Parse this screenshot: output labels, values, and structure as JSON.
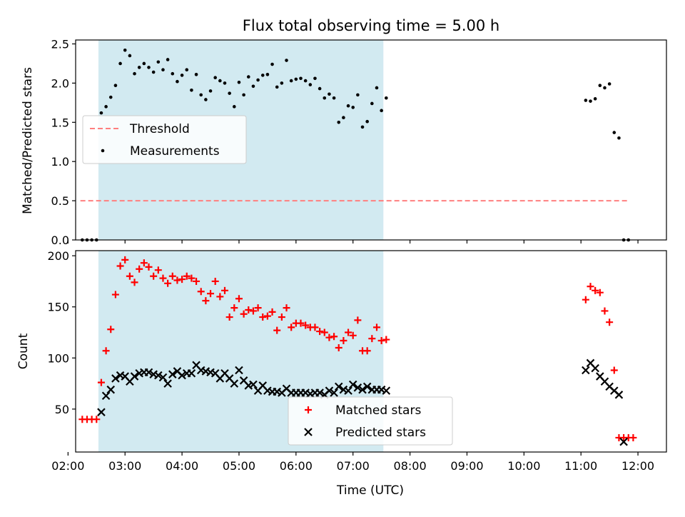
{
  "chart_data": [
    {
      "type": "scatter",
      "title": "Flux total observing time = 5.00 h",
      "xlabel": "",
      "ylabel": "Matched/Predicted stars",
      "xlim": [
        "02:08",
        "12:30"
      ],
      "ylim": [
        0,
        2.55
      ],
      "xticks": [
        "02:00",
        "03:00",
        "04:00",
        "05:00",
        "06:00",
        "07:00",
        "08:00",
        "09:00",
        "10:00",
        "11:00",
        "12:00"
      ],
      "yticks": [
        "0.0",
        "0.5",
        "1.0",
        "1.5",
        "2.0",
        "2.5"
      ],
      "shaded_interval": {
        "start": "02:32",
        "end": "07:32",
        "color": "#add8e6"
      },
      "grid": false,
      "legend_position": "center-left",
      "series": [
        {
          "name": "Threshold",
          "type": "line",
          "style": "dashed",
          "color": "#ff7f7f",
          "x": [
            "02:13",
            "11:51"
          ],
          "y": [
            0.5,
            0.5
          ]
        },
        {
          "name": "Measurements",
          "type": "scatter",
          "marker": "dot",
          "color": "#000000",
          "x": [
            "02:15",
            "02:20",
            "02:25",
            "02:30",
            "02:35",
            "02:40",
            "02:45",
            "02:50",
            "02:55",
            "03:00",
            "03:05",
            "03:10",
            "03:15",
            "03:20",
            "03:25",
            "03:30",
            "03:35",
            "03:40",
            "03:45",
            "03:50",
            "03:55",
            "04:00",
            "04:05",
            "04:10",
            "04:15",
            "04:20",
            "04:25",
            "04:30",
            "04:35",
            "04:40",
            "04:45",
            "04:50",
            "04:55",
            "05:00",
            "05:05",
            "05:10",
            "05:15",
            "05:20",
            "05:25",
            "05:30",
            "05:35",
            "05:40",
            "05:45",
            "05:50",
            "05:55",
            "06:00",
            "06:05",
            "06:10",
            "06:15",
            "06:20",
            "06:25",
            "06:30",
            "06:35",
            "06:40",
            "06:45",
            "06:50",
            "06:55",
            "07:00",
            "07:05",
            "07:10",
            "07:15",
            "07:20",
            "07:25",
            "07:30",
            "07:35",
            "11:05",
            "11:10",
            "11:15",
            "11:20",
            "11:25",
            "11:30",
            "11:35",
            "11:40",
            "11:45",
            "11:50"
          ],
          "y": [
            0.0,
            0.0,
            0.0,
            0.0,
            1.62,
            1.7,
            1.82,
            1.97,
            2.25,
            2.42,
            2.35,
            2.12,
            2.2,
            2.25,
            2.2,
            2.14,
            2.27,
            2.17,
            2.3,
            2.12,
            2.02,
            2.1,
            2.17,
            1.91,
            2.11,
            1.85,
            1.79,
            1.9,
            2.07,
            2.03,
            2.0,
            1.87,
            1.7,
            2.01,
            1.85,
            2.08,
            1.96,
            2.04,
            2.1,
            2.11,
            2.24,
            1.95,
            2.0,
            2.29,
            2.03,
            2.05,
            2.06,
            2.03,
            1.98,
            2.06,
            1.93,
            1.81,
            1.86,
            1.81,
            1.5,
            1.56,
            1.71,
            1.69,
            1.85,
            1.44,
            1.51,
            1.74,
            1.94,
            1.65,
            1.81,
            1.78,
            1.77,
            1.8,
            1.97,
            1.94,
            1.99,
            1.37,
            1.3,
            0.0,
            0.0
          ]
        }
      ]
    },
    {
      "type": "scatter",
      "title": "",
      "xlabel": "Time (UTC)",
      "ylabel": "Count",
      "xlim": [
        "02:08",
        "12:30"
      ],
      "ylim": [
        8,
        205
      ],
      "xticks": [
        "02:00",
        "03:00",
        "04:00",
        "05:00",
        "06:00",
        "07:00",
        "08:00",
        "09:00",
        "10:00",
        "11:00",
        "12:00"
      ],
      "yticks": [
        "50",
        "100",
        "150",
        "200"
      ],
      "shaded_interval": {
        "start": "02:32",
        "end": "07:32",
        "color": "#add8e6"
      },
      "grid": false,
      "legend_position": "lower-center",
      "series": [
        {
          "name": "Matched stars",
          "type": "scatter",
          "marker": "plus",
          "color": "#ff0000",
          "x": [
            "02:15",
            "02:20",
            "02:25",
            "02:30",
            "02:35",
            "02:40",
            "02:45",
            "02:50",
            "02:55",
            "03:00",
            "03:05",
            "03:10",
            "03:15",
            "03:20",
            "03:25",
            "03:30",
            "03:35",
            "03:40",
            "03:45",
            "03:50",
            "03:55",
            "04:00",
            "04:05",
            "04:10",
            "04:15",
            "04:20",
            "04:25",
            "04:30",
            "04:35",
            "04:40",
            "04:45",
            "04:50",
            "04:55",
            "05:00",
            "05:05",
            "05:10",
            "05:15",
            "05:20",
            "05:25",
            "05:30",
            "05:35",
            "05:40",
            "05:45",
            "05:50",
            "05:55",
            "06:00",
            "06:05",
            "06:10",
            "06:15",
            "06:20",
            "06:25",
            "06:30",
            "06:35",
            "06:40",
            "06:45",
            "06:50",
            "06:55",
            "07:00",
            "07:05",
            "07:10",
            "07:15",
            "07:20",
            "07:25",
            "07:30",
            "07:35",
            "11:05",
            "11:10",
            "11:15",
            "11:20",
            "11:25",
            "11:30",
            "11:35",
            "11:40",
            "11:45",
            "11:50",
            "11:55"
          ],
          "y": [
            40,
            40,
            40,
            40,
            76,
            107,
            128,
            162,
            190,
            196,
            180,
            174,
            187,
            193,
            189,
            180,
            186,
            178,
            173,
            180,
            176,
            177,
            180,
            178,
            175,
            165,
            156,
            163,
            175,
            160,
            166,
            140,
            149,
            158,
            143,
            147,
            146,
            149,
            140,
            141,
            145,
            127,
            140,
            149,
            130,
            134,
            134,
            132,
            130,
            130,
            126,
            125,
            120,
            121,
            110,
            117,
            125,
            122,
            137,
            107,
            107,
            119,
            130,
            117,
            118,
            157,
            170,
            166,
            164,
            146,
            135,
            88,
            22,
            22,
            22,
            22
          ]
        },
        {
          "name": "Predicted stars",
          "type": "scatter",
          "marker": "x",
          "color": "#000000",
          "x": [
            "02:35",
            "02:40",
            "02:45",
            "02:50",
            "02:55",
            "03:00",
            "03:05",
            "03:10",
            "03:15",
            "03:20",
            "03:25",
            "03:30",
            "03:35",
            "03:40",
            "03:45",
            "03:50",
            "03:55",
            "04:00",
            "04:05",
            "04:10",
            "04:15",
            "04:20",
            "04:25",
            "04:30",
            "04:35",
            "04:40",
            "04:45",
            "04:50",
            "04:55",
            "05:00",
            "05:05",
            "05:10",
            "05:15",
            "05:20",
            "05:25",
            "05:30",
            "05:35",
            "05:40",
            "05:45",
            "05:50",
            "05:55",
            "06:00",
            "06:05",
            "06:10",
            "06:15",
            "06:20",
            "06:25",
            "06:30",
            "06:35",
            "06:40",
            "06:45",
            "06:50",
            "06:55",
            "07:00",
            "07:05",
            "07:10",
            "07:15",
            "07:20",
            "07:25",
            "07:30",
            "07:35",
            "11:05",
            "11:10",
            "11:15",
            "11:20",
            "11:25",
            "11:30",
            "11:35",
            "11:40",
            "11:45"
          ],
          "y": [
            47,
            63,
            69,
            80,
            83,
            82,
            77,
            82,
            85,
            86,
            86,
            84,
            83,
            81,
            75,
            84,
            87,
            83,
            85,
            85,
            93,
            88,
            87,
            86,
            85,
            80,
            85,
            80,
            75,
            88,
            78,
            73,
            74,
            68,
            73,
            68,
            67,
            67,
            66,
            70,
            66,
            66,
            66,
            66,
            65,
            66,
            66,
            64,
            68,
            66,
            72,
            69,
            68,
            74,
            71,
            69,
            72,
            69,
            69,
            69,
            68,
            88,
            95,
            90,
            82,
            77,
            72,
            68,
            64,
            18
          ]
        }
      ]
    }
  ]
}
